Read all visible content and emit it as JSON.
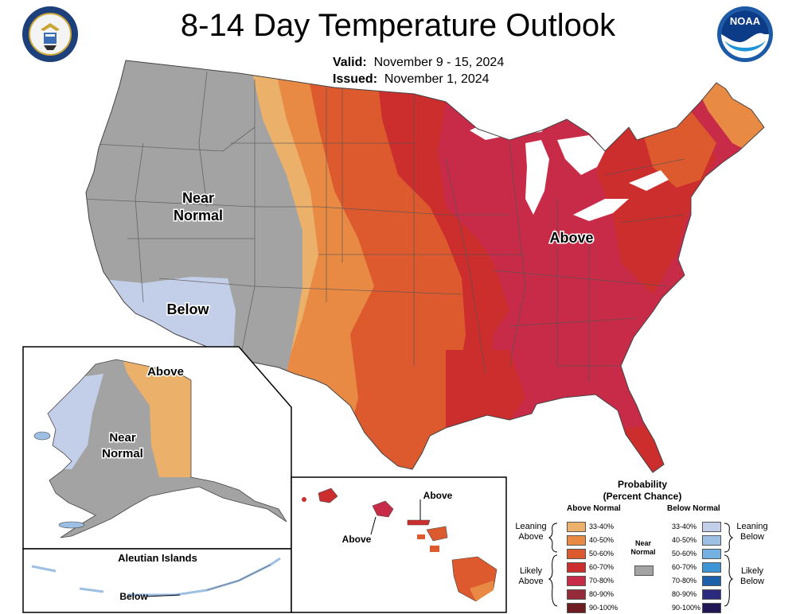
{
  "title": "8-14 Day Temperature Outlook",
  "valid_label": "Valid:",
  "valid_dates": "November 9 - 15, 2024",
  "issued_label": "Issued:",
  "issued_date": "November 1, 2024",
  "logos": {
    "left": "department-of-commerce-seal",
    "right": "noaa-logo",
    "noaa_text": "NOAA"
  },
  "map_labels": {
    "conus_near_normal_1": "Near",
    "conus_near_normal_2": "Normal",
    "conus_below": "Below",
    "conus_above": "Above",
    "alaska_above": "Above",
    "alaska_near_1": "Near",
    "alaska_near_2": "Normal",
    "aleutian_title": "Aleutian Islands",
    "aleutian_below": "Below",
    "hawaii_above_1": "Above",
    "hawaii_above_2": "Above"
  },
  "legend": {
    "title_line1": "Probability",
    "title_line2": "(Percent Chance)",
    "above_header": "Above Normal",
    "below_header": "Below Normal",
    "above_bins": [
      {
        "label": "33-40%",
        "color": "#ebb06a"
      },
      {
        "label": "40-50%",
        "color": "#e88a44"
      },
      {
        "label": "50-60%",
        "color": "#dc5a2e"
      },
      {
        "label": "60-70%",
        "color": "#cc2d2d"
      },
      {
        "label": "70-80%",
        "color": "#c82b48"
      },
      {
        "label": "80-90%",
        "color": "#952b39"
      },
      {
        "label": "90-100%",
        "color": "#6e1c22"
      }
    ],
    "below_bins": [
      {
        "label": "33-40%",
        "color": "#c3cfe8"
      },
      {
        "label": "40-50%",
        "color": "#9ebfe4"
      },
      {
        "label": "50-60%",
        "color": "#74b1e3"
      },
      {
        "label": "60-70%",
        "color": "#3d95d6"
      },
      {
        "label": "70-80%",
        "color": "#1b60a8"
      },
      {
        "label": "80-90%",
        "color": "#2c2a7e"
      },
      {
        "label": "90-100%",
        "color": "#1f1854"
      }
    ],
    "near_normal_1": "Near",
    "near_normal_2": "Normal",
    "near_normal_color": "#a3a3a3",
    "leaning_above_1": "Leaning",
    "leaning_above_2": "Above",
    "likely_above_1": "Likely",
    "likely_above_2": "Above",
    "leaning_below_1": "Leaning",
    "leaning_below_2": "Below",
    "likely_below_1": "Likely",
    "likely_below_2": "Below"
  }
}
